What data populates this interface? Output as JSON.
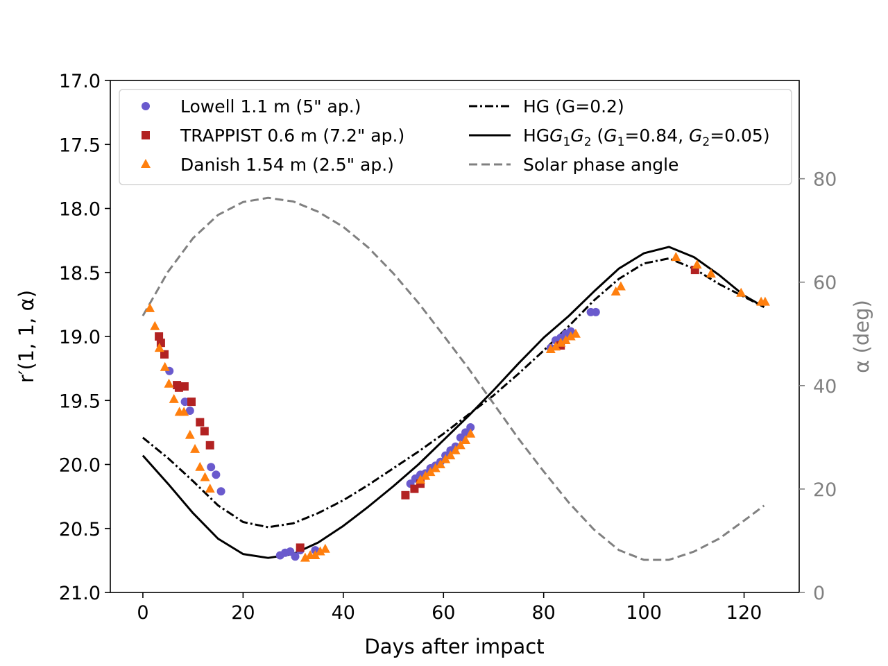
{
  "chart_data": {
    "type": "scatter",
    "xlabel": "Days after impact",
    "ylabel": "r′(1, 1, α)",
    "y2label": "α (deg)",
    "xlim": [
      -6.5,
      131
    ],
    "ylim": [
      21.0,
      17.0
    ],
    "y2lim": [
      0,
      99
    ],
    "xticks": [
      0,
      20,
      40,
      60,
      80,
      100,
      120
    ],
    "yticks": [
      "17.0",
      "17.5",
      "18.0",
      "18.5",
      "19.0",
      "19.5",
      "20.0",
      "20.5",
      "21.0"
    ],
    "y2ticks": [
      0,
      20,
      40,
      60,
      80
    ],
    "colors": {
      "lowell": "#6a5acd",
      "trappist": "#b22222",
      "danish": "#ff7f0e",
      "model": "#000000",
      "phase": "#808080"
    },
    "legend": {
      "lowell": "Lowell 1.1 m (5\" ap.)",
      "trappist": "TRAPPIST 0.6 m (7.2\" ap.)",
      "danish": "Danish 1.54 m (2.5\" ap.)",
      "hg": "HG (G=0.2)",
      "hg1g2_pre": "HG",
      "hg1g2_mid": " (",
      "hg1g2_g1val": "=0.84, ",
      "hg1g2_g2val": "=0.05)",
      "phase": "Solar phase angle"
    },
    "series": [
      {
        "name": "Lowell 1.1 m (5\" ap.)",
        "marker": "circle",
        "x": [
          5.3,
          8.4,
          9.4,
          13.6,
          14.6,
          15.6,
          27.4,
          28.4,
          29.4,
          30.4,
          31.4,
          34.4,
          53.4,
          54.4,
          55.4,
          56.4,
          57.4,
          58.4,
          59.4,
          60.4,
          61.4,
          62.4,
          63.4,
          64.4,
          65.4,
          81.4,
          82.4,
          83.4,
          84.4,
          85.4,
          89.4,
          90.4
        ],
        "y": [
          19.27,
          19.51,
          19.58,
          20.02,
          20.08,
          20.21,
          20.71,
          20.69,
          20.68,
          20.72,
          20.67,
          20.67,
          20.15,
          20.11,
          20.08,
          20.07,
          20.03,
          20.01,
          19.98,
          19.93,
          19.89,
          19.86,
          19.79,
          19.75,
          19.71,
          19.09,
          19.03,
          19.01,
          18.98,
          18.96,
          18.81,
          18.81
        ]
      },
      {
        "name": "TRAPPIST 0.6 m (7.2\" ap.)",
        "marker": "square",
        "x": [
          3.2,
          3.6,
          4.3,
          6.8,
          7.2,
          8.3,
          9.7,
          11.4,
          12.3,
          13.4,
          31.4,
          52.4,
          54.2,
          55.4,
          83.4,
          110.2
        ],
        "y": [
          19.0,
          19.05,
          19.14,
          19.38,
          19.4,
          19.39,
          19.51,
          19.67,
          19.74,
          19.85,
          20.65,
          20.24,
          20.19,
          20.15,
          19.07,
          18.48
        ]
      },
      {
        "name": "Danish 1.54 m (2.5\" ap.)",
        "marker": "triangle",
        "x": [
          1.4,
          2.4,
          3.3,
          4.4,
          5.2,
          6.2,
          7.3,
          8.2,
          9.4,
          10.4,
          11.4,
          12.4,
          13.4,
          32.4,
          33.4,
          34.4,
          35.4,
          36.4,
          55.4,
          56.4,
          57.4,
          58.4,
          59.4,
          60.4,
          61.4,
          62.4,
          63.4,
          64.4,
          65.4,
          81.4,
          82.4,
          83.4,
          84.4,
          85.4,
          86.4,
          94.4,
          95.4,
          106.4,
          110.6,
          113.4,
          119.4,
          123.4,
          124.2
        ],
        "y": [
          18.78,
          18.92,
          19.09,
          19.24,
          19.37,
          19.49,
          19.59,
          19.59,
          19.77,
          19.88,
          20.02,
          20.1,
          20.19,
          20.73,
          20.71,
          20.71,
          20.68,
          20.66,
          20.12,
          20.09,
          20.06,
          20.03,
          20.0,
          19.96,
          19.93,
          19.89,
          19.85,
          19.81,
          19.76,
          19.1,
          19.08,
          19.05,
          19.03,
          19.0,
          18.98,
          18.65,
          18.61,
          18.38,
          18.44,
          18.51,
          18.66,
          18.73,
          18.73
        ]
      },
      {
        "name": "HG (G=0.2)",
        "line": "dashdot",
        "x": [
          0,
          5,
          10,
          15,
          20,
          25,
          30,
          35,
          40,
          45,
          50,
          55,
          60,
          65,
          70,
          75,
          80,
          85,
          90,
          95,
          100,
          105,
          110,
          115,
          120,
          124
        ],
        "y": [
          19.79,
          19.95,
          20.13,
          20.32,
          20.45,
          20.49,
          20.46,
          20.38,
          20.28,
          20.16,
          20.03,
          19.9,
          19.76,
          19.61,
          19.46,
          19.29,
          19.11,
          18.92,
          18.72,
          18.55,
          18.43,
          18.39,
          18.47,
          18.59,
          18.69,
          18.77
        ]
      },
      {
        "name": "HG1G2 (G1=0.84, G2=0.05)",
        "line": "solid",
        "x": [
          0,
          5,
          10,
          15,
          20,
          25,
          30,
          35,
          40,
          45,
          50,
          55,
          60,
          65,
          70,
          75,
          80,
          85,
          90,
          95,
          100,
          105,
          110,
          115,
          120,
          124
        ],
        "y": [
          19.93,
          20.15,
          20.38,
          20.58,
          20.7,
          20.73,
          20.7,
          20.61,
          20.48,
          20.33,
          20.17,
          20.0,
          19.81,
          19.62,
          19.42,
          19.21,
          19.01,
          18.84,
          18.65,
          18.47,
          18.35,
          18.3,
          18.38,
          18.52,
          18.68,
          18.77
        ]
      },
      {
        "name": "Solar phase angle",
        "line": "dashed",
        "axis": "right",
        "x": [
          0,
          5,
          10,
          15,
          20,
          25,
          30,
          35,
          40,
          45,
          50,
          55,
          60,
          65,
          70,
          75,
          80,
          85,
          90,
          95,
          100,
          105,
          110,
          115,
          120,
          124
        ],
        "y": [
          53.5,
          62.0,
          68.5,
          73.0,
          75.5,
          76.3,
          75.6,
          73.6,
          70.7,
          66.7,
          61.7,
          56.0,
          49.7,
          43.3,
          36.5,
          29.7,
          23.4,
          17.4,
          12.2,
          8.2,
          6.3,
          6.3,
          7.9,
          10.4,
          13.9,
          16.8
        ]
      }
    ]
  }
}
